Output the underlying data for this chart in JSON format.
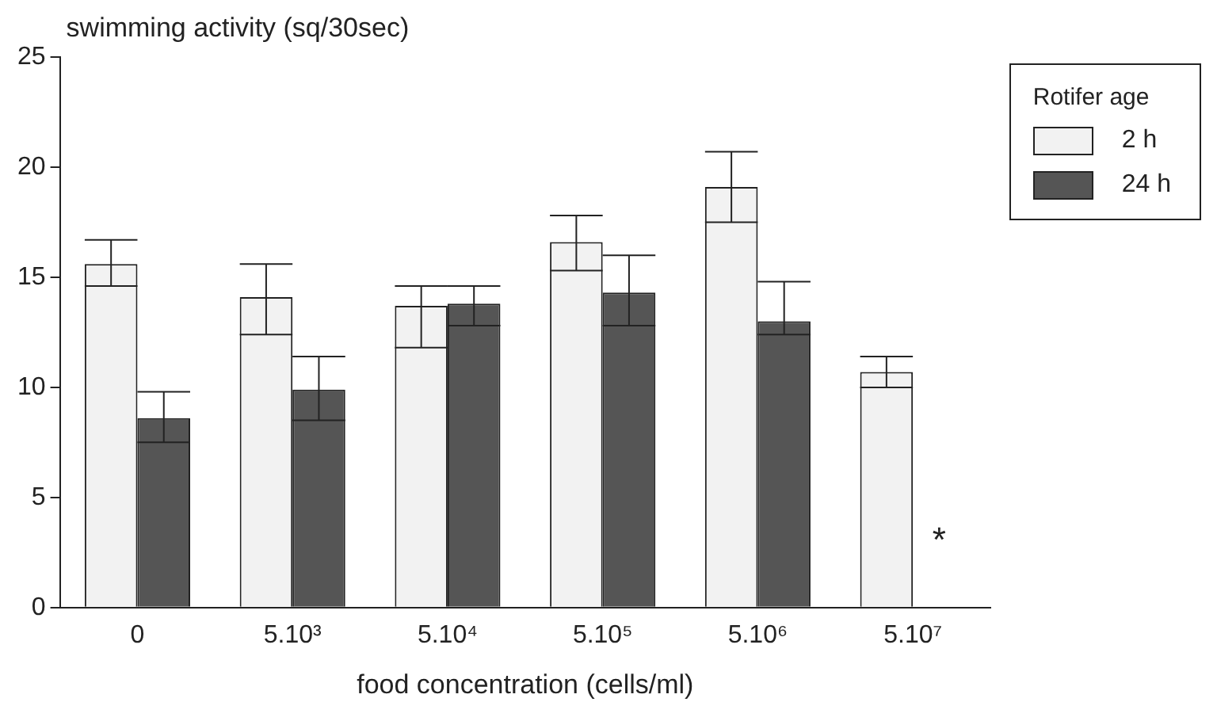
{
  "chart_data": {
    "type": "bar",
    "categories": [
      "0",
      "5.10³",
      "5.10⁴",
      "5.10⁵",
      "5.10⁶",
      "5.10⁷"
    ],
    "series": [
      {
        "name": "2 h",
        "color": "#f2f2f2",
        "values": [
          15.6,
          14.1,
          13.7,
          16.6,
          19.1,
          10.7
        ],
        "errors": [
          [
            14.6,
            16.7
          ],
          [
            12.4,
            15.6
          ],
          [
            11.8,
            14.6
          ],
          [
            15.3,
            17.8
          ],
          [
            17.5,
            20.7
          ],
          [
            10.0,
            11.4
          ]
        ]
      },
      {
        "name": "24 h",
        "color": "#555555",
        "values": [
          8.6,
          9.9,
          13.8,
          14.3,
          13.0,
          null
        ],
        "errors": [
          [
            7.5,
            9.8
          ],
          [
            8.5,
            11.4
          ],
          [
            12.8,
            14.6
          ],
          [
            12.8,
            16.0
          ],
          [
            12.4,
            14.8
          ],
          null
        ]
      }
    ],
    "xlabel": "food concentration (cells/ml)",
    "ylabel": "swimming activity (sq/30sec)",
    "legend_title": "Rotifer age",
    "ylim": [
      0,
      25
    ],
    "yticks": [
      0,
      5,
      10,
      15,
      20,
      25
    ],
    "grid": false,
    "legend": "top right",
    "annotations": [
      {
        "text": "*",
        "x": "5.10⁷",
        "y": 3
      }
    ]
  }
}
